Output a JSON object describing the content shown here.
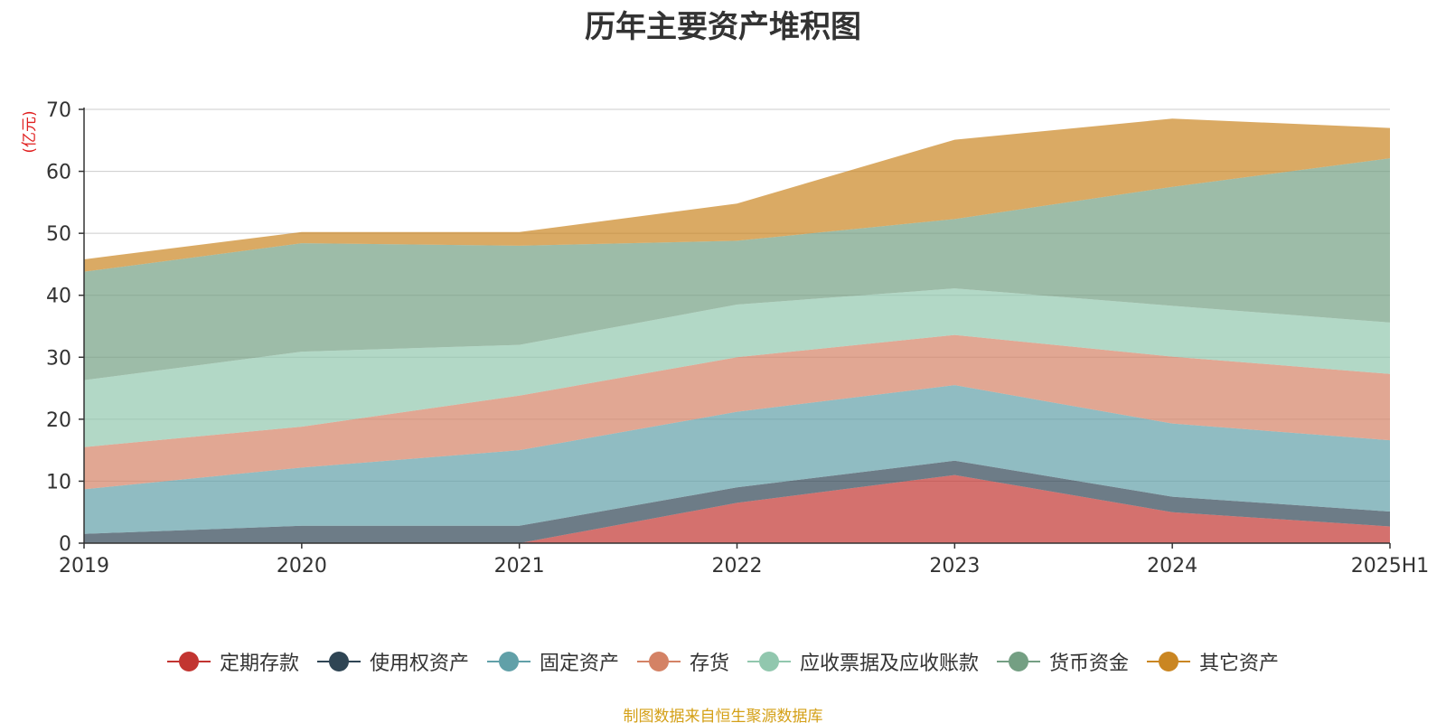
{
  "chart_data": {
    "type": "area",
    "stacked": true,
    "title": "历年主要资产堆积图",
    "ylabel": "(亿元)",
    "xlabel": "",
    "categories": [
      "2019",
      "2020",
      "2021",
      "2022",
      "2023",
      "2024",
      "2025H1"
    ],
    "ylim": [
      0,
      70
    ],
    "yticks": [
      0,
      10,
      20,
      30,
      40,
      50,
      60,
      70
    ],
    "grid": true,
    "legend_position": "bottom",
    "series": [
      {
        "name": "定期存款",
        "color": "#c23531",
        "values": [
          0,
          0,
          0,
          6.5,
          11,
          5,
          2.7
        ]
      },
      {
        "name": "使用权资产",
        "color": "#2f4554",
        "values": [
          1.5,
          2.8,
          2.8,
          2.5,
          2.3,
          2.5,
          2.4
        ]
      },
      {
        "name": "固定资产",
        "color": "#61a0a8",
        "values": [
          7.2,
          9.4,
          12.2,
          12.2,
          12.2,
          11.8,
          11.5
        ]
      },
      {
        "name": "存货",
        "color": "#d48265",
        "values": [
          6.8,
          6.6,
          8.8,
          8.8,
          8.1,
          10.8,
          10.7
        ]
      },
      {
        "name": "应收票据及应收账款",
        "color": "#91c7ae",
        "values": [
          10.8,
          12.1,
          8.2,
          8.5,
          7.5,
          8.2,
          8.3
        ]
      },
      {
        "name": "货币资金",
        "color": "#749f83",
        "values": [
          17.5,
          17.5,
          16,
          10.3,
          11.2,
          19.2,
          26.5
        ]
      },
      {
        "name": "其它资产",
        "color": "#ca8622",
        "values": [
          2,
          1.8,
          2.2,
          6,
          12.8,
          11,
          4.9
        ]
      }
    ]
  },
  "source_note": "制图数据来自恒生聚源数据库"
}
